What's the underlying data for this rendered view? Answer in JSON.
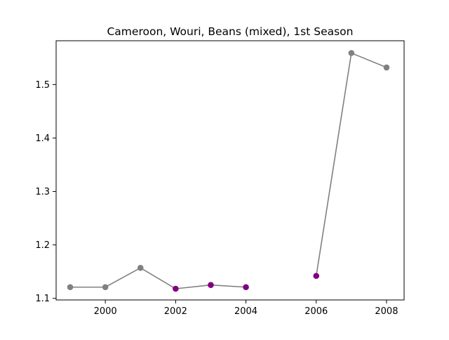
{
  "chart_data": {
    "type": "line",
    "title": "Cameroon, Wouri, Beans (mixed), 1st Season",
    "xlabel": "",
    "ylabel": "",
    "xlim": [
      1998.6,
      2008.5
    ],
    "ylim": [
      1.097,
      1.582
    ],
    "x_ticks": [
      2000,
      2002,
      2004,
      2006,
      2008
    ],
    "x_tick_labels": [
      "2000",
      "2002",
      "2004",
      "2006",
      "2008"
    ],
    "y_ticks": [
      1.1,
      1.2,
      1.3,
      1.4,
      1.5
    ],
    "y_tick_labels": [
      "1.1",
      "1.2",
      "1.3",
      "1.4",
      "1.5"
    ],
    "grid": false,
    "line_color": "#808080",
    "points": [
      {
        "x": 1999,
        "y": 1.121,
        "color": "#808080"
      },
      {
        "x": 2000,
        "y": 1.121,
        "color": "#808080"
      },
      {
        "x": 2001,
        "y": 1.157,
        "color": "#808080"
      },
      {
        "x": 2002,
        "y": 1.118,
        "color": "#800080"
      },
      {
        "x": 2003,
        "y": 1.125,
        "color": "#800080"
      },
      {
        "x": 2004,
        "y": 1.121,
        "color": "#800080"
      },
      {
        "x": 2006,
        "y": 1.142,
        "color": "#800080"
      },
      {
        "x": 2007,
        "y": 1.559,
        "color": "#808080"
      },
      {
        "x": 2008,
        "y": 1.532,
        "color": "#808080"
      }
    ],
    "line_segments": [
      [
        [
          1999,
          1.121
        ],
        [
          2000,
          1.121
        ],
        [
          2001,
          1.157
        ],
        [
          2002,
          1.118
        ],
        [
          2003,
          1.125
        ],
        [
          2004,
          1.121
        ]
      ],
      [
        [
          2006,
          1.142
        ],
        [
          2007,
          1.559
        ],
        [
          2008,
          1.532
        ]
      ]
    ]
  }
}
